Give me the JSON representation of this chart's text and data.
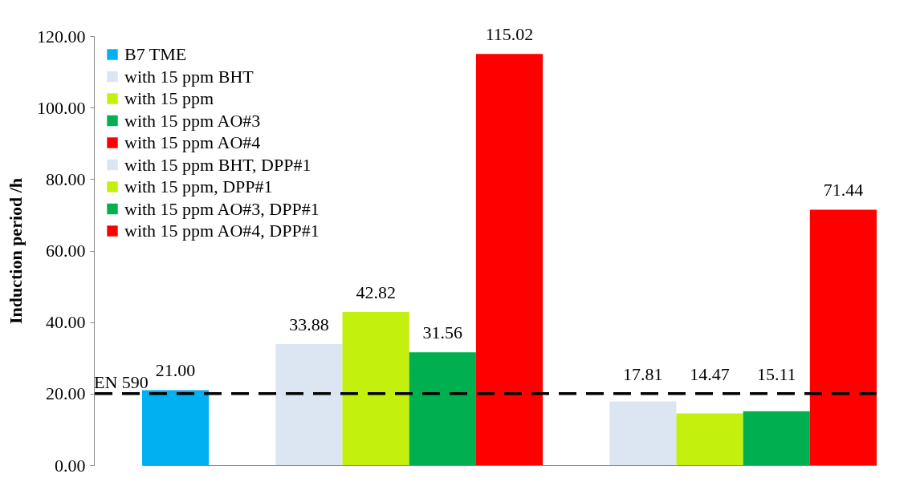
{
  "chart_data": {
    "type": "bar",
    "ylabel": "Induction period /h",
    "categories": [
      null,
      null,
      null,
      null,
      null,
      null,
      null,
      null,
      null,
      null,
      null
    ],
    "ylim": [
      0,
      120
    ],
    "yticks": [
      {
        "value": 0,
        "label": "0.00"
      },
      {
        "value": 20,
        "label": "20.00"
      },
      {
        "value": 40,
        "label": "40.00"
      },
      {
        "value": 60,
        "label": "60.00"
      },
      {
        "value": 80,
        "label": "80.00"
      },
      {
        "value": 100,
        "label": "100.00"
      },
      {
        "value": 120,
        "label": "120.00"
      }
    ],
    "grid": false,
    "legend": "top left",
    "stacked": true,
    "ref_lines": [
      {
        "axis": "y",
        "value": 20,
        "label": "EN 590",
        "color": "#000000",
        "line_style": "dashed"
      }
    ],
    "series": [
      {
        "name": "B7 TME",
        "color": "#00b0f0",
        "values": [
          21.0,
          null,
          null,
          null,
          null,
          null,
          null,
          null,
          null,
          null,
          null
        ],
        "value_labels": [
          "21.00",
          null,
          null,
          null,
          null,
          null,
          null,
          null,
          null,
          null,
          null
        ]
      },
      {
        "name": "with 15 ppm BHT",
        "color": "#dce6f2",
        "values": [
          null,
          null,
          33.88,
          null,
          null,
          null,
          null,
          null,
          null,
          null,
          null
        ],
        "value_labels": [
          null,
          null,
          "33.88",
          null,
          null,
          null,
          null,
          null,
          null,
          null,
          null
        ]
      },
      {
        "name": "with 15 ppm",
        "color": "#c4f00e",
        "values": [
          null,
          null,
          null,
          42.82,
          null,
          null,
          null,
          null,
          null,
          null,
          null
        ],
        "value_labels": [
          null,
          null,
          null,
          "42.82",
          null,
          null,
          null,
          null,
          null,
          null,
          null
        ]
      },
      {
        "name": "with 15 ppm AO#3",
        "color": "#00b050",
        "values": [
          null,
          null,
          null,
          null,
          31.56,
          null,
          null,
          null,
          null,
          null,
          null
        ],
        "value_labels": [
          null,
          null,
          null,
          null,
          "31.56",
          null,
          null,
          null,
          null,
          null,
          null
        ]
      },
      {
        "name": "with 15 ppm AO#4",
        "color": "#ff0000",
        "values": [
          null,
          null,
          null,
          null,
          null,
          115.02,
          null,
          null,
          null,
          null,
          null
        ],
        "value_labels": [
          null,
          null,
          null,
          null,
          null,
          "115.02",
          null,
          null,
          null,
          null,
          null
        ]
      },
      {
        "name": "with 15 ppm BHT, DPP#1",
        "color": "#dce6f2",
        "values": [
          null,
          null,
          null,
          null,
          null,
          null,
          null,
          17.81,
          null,
          null,
          null
        ],
        "value_labels": [
          null,
          null,
          null,
          null,
          null,
          null,
          null,
          "17.81",
          null,
          null,
          null
        ]
      },
      {
        "name": "with 15 ppm, DPP#1",
        "color": "#c4f00e",
        "values": [
          null,
          null,
          null,
          null,
          null,
          null,
          null,
          null,
          14.47,
          null,
          null
        ],
        "value_labels": [
          null,
          null,
          null,
          null,
          null,
          null,
          null,
          null,
          "14.47",
          null,
          null
        ]
      },
      {
        "name": "with 15 ppm AO#3, DPP#1",
        "color": "#00b050",
        "values": [
          null,
          null,
          null,
          null,
          null,
          null,
          null,
          null,
          null,
          15.11,
          null
        ],
        "value_labels": [
          null,
          null,
          null,
          null,
          null,
          null,
          null,
          null,
          null,
          "15.11",
          null
        ]
      },
      {
        "name": "with 15 ppm AO#4, DPP#1",
        "color": "#ff0000",
        "values": [
          null,
          null,
          null,
          null,
          null,
          null,
          null,
          null,
          null,
          null,
          71.44
        ],
        "value_labels": [
          null,
          null,
          null,
          null,
          null,
          null,
          null,
          null,
          null,
          null,
          "71.44"
        ]
      }
    ]
  }
}
